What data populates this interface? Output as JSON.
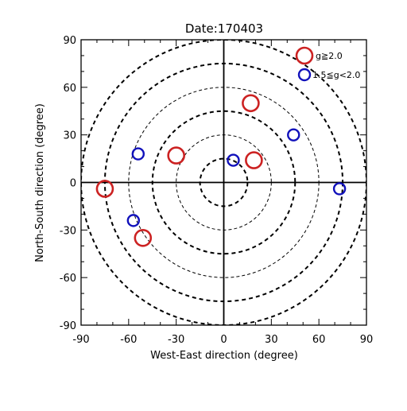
{
  "colors": {
    "background": "#ffffff",
    "axis": "#000000",
    "large_marker": "#cc2222",
    "small_marker": "#1111bb"
  },
  "chart_data": {
    "type": "scatter",
    "title": "Date:170403",
    "xlabel": "West-East direction (degree)",
    "ylabel": "North-South direction (degree)",
    "xlim": [
      -90,
      90
    ],
    "ylim": [
      -90,
      90
    ],
    "xticks": [
      "-90",
      "-60",
      "-30",
      "0",
      "30",
      "60",
      "90"
    ],
    "yticks": [
      "90",
      "60",
      "30",
      "0",
      "-30",
      "-60",
      "-90"
    ],
    "xtick_values": [
      -90,
      -60,
      -30,
      0,
      30,
      60,
      90
    ],
    "ytick_values": [
      90,
      60,
      30,
      0,
      -30,
      -60,
      -90
    ],
    "zero_axes": true,
    "concentric_rings": {
      "style": "dashed",
      "thick_radii": [
        15,
        45,
        75,
        90
      ],
      "thin_radii": [
        30,
        60
      ]
    },
    "legend_placement": "top-right",
    "series": [
      {
        "name": "g≧2.0",
        "marker": "large open circle",
        "color": "#cc2222",
        "points": [
          {
            "x": 17,
            "y": 50
          },
          {
            "x": -30,
            "y": 17
          },
          {
            "x": 19,
            "y": 14
          },
          {
            "x": -75,
            "y": -4
          },
          {
            "x": -51,
            "y": -35
          }
        ]
      },
      {
        "name": "1.5≦g<2.0",
        "marker": "small open circle",
        "color": "#1111bb",
        "points": [
          {
            "x": 44,
            "y": 30
          },
          {
            "x": -54,
            "y": 18
          },
          {
            "x": 6,
            "y": 14
          },
          {
            "x": 73,
            "y": -4
          },
          {
            "x": -57,
            "y": -24
          }
        ]
      }
    ]
  }
}
